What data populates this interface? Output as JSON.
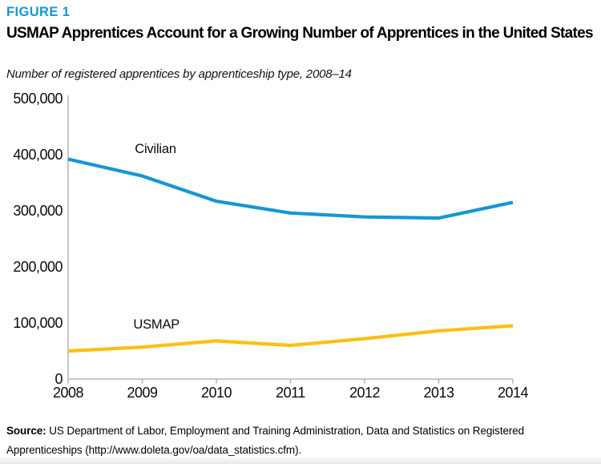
{
  "figure_label": "FIGURE 1",
  "title": "USMAP Apprentices Account for a Growing Number of Apprentices in the United States",
  "subtitle": "Number of registered apprentices by apprenticeship type, 2008–14",
  "source": {
    "label": "Source:",
    "text": " US Department of Labor, Employment and Training Administration, Data and Statistics on Registered Apprenticeships (http://www.doleta.gov/oa/data_statistics.cfm)."
  },
  "colors": {
    "accent_blue": "#1696d2",
    "civilian_line": "#1696d2",
    "usmap_line": "#fdbf11",
    "axis": "#a8a8a8",
    "text": "#0b0b0b"
  },
  "chart_data": {
    "type": "line",
    "x": [
      2008,
      2009,
      2010,
      2011,
      2012,
      2013,
      2014
    ],
    "xtick_labels": [
      "2008",
      "2009",
      "2010",
      "2011",
      "2012",
      "2013",
      "2014"
    ],
    "series": [
      {
        "name": "Civilian",
        "color": "#1696d2",
        "values": [
          392000,
          362000,
          317000,
          296000,
          289000,
          287000,
          315000
        ],
        "label_anchor": {
          "year": 2008.9,
          "value": 409000
        }
      },
      {
        "name": "USMAP",
        "color": "#fdbf11",
        "values": [
          50000,
          57000,
          68000,
          60000,
          72000,
          86000,
          95000
        ],
        "label_anchor": {
          "year": 2008.88,
          "value": 96500
        }
      }
    ],
    "ylim": [
      0,
      500000
    ],
    "yticks": [
      0,
      100000,
      200000,
      300000,
      400000,
      500000
    ],
    "ytick_labels": [
      "0",
      "100,000",
      "200,000",
      "300,000",
      "400,000",
      "500,000"
    ],
    "grid": false,
    "legend": "inline-labels"
  }
}
